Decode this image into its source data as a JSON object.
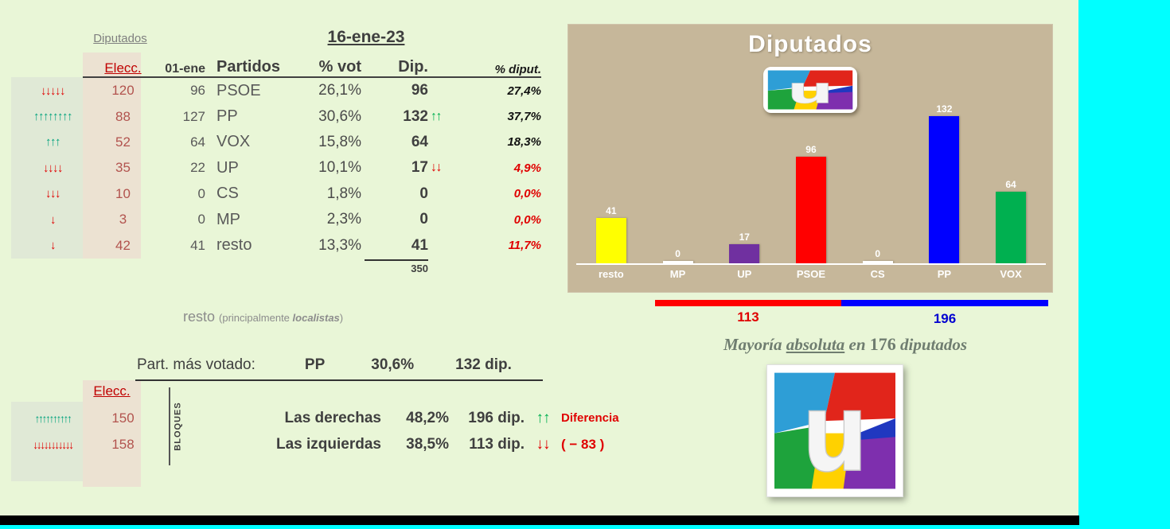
{
  "page": {
    "bg": "#e9f6d7",
    "accent_cyan": "#00ffff",
    "footer_black": "#000000"
  },
  "left": {
    "title": "Diputados",
    "date": "16-ene-23",
    "headers": {
      "elecc": "Elecc.",
      "prev": "01-ene",
      "partidos": "Partidos",
      "pct_vot": "% vot",
      "dip": "Dip.",
      "pct_diput": "% diput."
    },
    "rows": [
      {
        "trend": "↓↓↓↓↓",
        "dir": "down",
        "elecc": "120",
        "prev": "96",
        "party": "PSOE",
        "pct_vot": "26,1%",
        "dip": "96",
        "dip_arrows": "",
        "dip_dir": "",
        "pct_diput": "27,4%",
        "tone": "pos"
      },
      {
        "trend": "↑↑↑↑↑↑↑↑",
        "dir": "up",
        "elecc": "88",
        "prev": "127",
        "party": "PP",
        "pct_vot": "30,6%",
        "dip": "132",
        "dip_arrows": "↑↑",
        "dip_dir": "up",
        "pct_diput": "37,7%",
        "tone": "pos"
      },
      {
        "trend": "↑↑↑",
        "dir": "up",
        "elecc": "52",
        "prev": "64",
        "party": "VOX",
        "pct_vot": "15,8%",
        "dip": "64",
        "dip_arrows": "",
        "dip_dir": "",
        "pct_diput": "18,3%",
        "tone": "pos"
      },
      {
        "trend": "↓↓↓↓",
        "dir": "down",
        "elecc": "35",
        "prev": "22",
        "party": "UP",
        "pct_vot": "10,1%",
        "dip": "17",
        "dip_arrows": "↓↓",
        "dip_dir": "down",
        "pct_diput": "4,9%",
        "tone": "neg"
      },
      {
        "trend": "↓↓↓",
        "dir": "down",
        "elecc": "10",
        "prev": "0",
        "party": "CS",
        "pct_vot": "1,8%",
        "dip": "0",
        "dip_arrows": "",
        "dip_dir": "",
        "pct_diput": "0,0%",
        "tone": "neg"
      },
      {
        "trend": "↓",
        "dir": "down",
        "elecc": "3",
        "prev": "0",
        "party": "MP",
        "pct_vot": "2,3%",
        "dip": "0",
        "dip_arrows": "",
        "dip_dir": "",
        "pct_diput": "0,0%",
        "tone": "neg"
      },
      {
        "trend": "↓",
        "dir": "down",
        "elecc": "42",
        "prev": "41",
        "party": "resto",
        "pct_vot": "13,3%",
        "dip": "41",
        "dip_arrows": "",
        "dip_dir": "",
        "pct_diput": "11,7%",
        "tone": "neg"
      }
    ],
    "total": "350",
    "resto_note": {
      "lead": "resto ",
      "paren_open": "(principalmente ",
      "bold": "localistas",
      "paren_close": ")"
    },
    "most_voted": {
      "label": "Part. más votado:",
      "party": "PP",
      "pct": "30,6%",
      "dip": "132 dip."
    },
    "blocks": {
      "elecc_header": "Elecc.",
      "bloques_label": "BLOQUES",
      "rows": [
        {
          "trend": "↑↑↑↑↑↑↑↑↑↑",
          "dir": "up",
          "elecc": "150",
          "label": "Las derechas",
          "pct": "48,2%",
          "dip": "196 dip.",
          "diff_arrows": "↑↑",
          "diff_dir": "up",
          "extra": "Diferencia"
        },
        {
          "trend": "↓↓↓↓↓↓↓↓↓↓↓",
          "dir": "down",
          "elecc": "158",
          "label": "Las izquierdas",
          "pct": "38,5%",
          "dip": "113 dip.",
          "diff_arrows": "↓↓",
          "diff_dir": "down",
          "extra": "( − 83 )"
        }
      ]
    }
  },
  "chart_data": {
    "type": "bar",
    "title": "Diputados",
    "categories": [
      "resto",
      "MP",
      "UP",
      "PSOE",
      "CS",
      "PP",
      "VOX"
    ],
    "values": [
      41,
      0,
      17,
      96,
      0,
      132,
      64
    ],
    "colors": [
      "#ffff00",
      "#ffffff",
      "#7030a0",
      "#ff0000",
      "#ffffff",
      "#0000ff",
      "#00b050"
    ],
    "ylim": [
      0,
      140
    ],
    "xlabel": "",
    "ylabel": "",
    "grid": false,
    "legend": false,
    "panel_bg": "#c6b79a",
    "value_label_color": "#ffffff"
  },
  "majority": {
    "left_value": "113",
    "right_value": "196",
    "left_color": "#ff0000",
    "right_color": "#0000ff",
    "note": {
      "p1": "Mayoría ",
      "p2": "absoluta",
      "p3": " en ",
      "p4": "176",
      "p5": " diputados"
    }
  }
}
